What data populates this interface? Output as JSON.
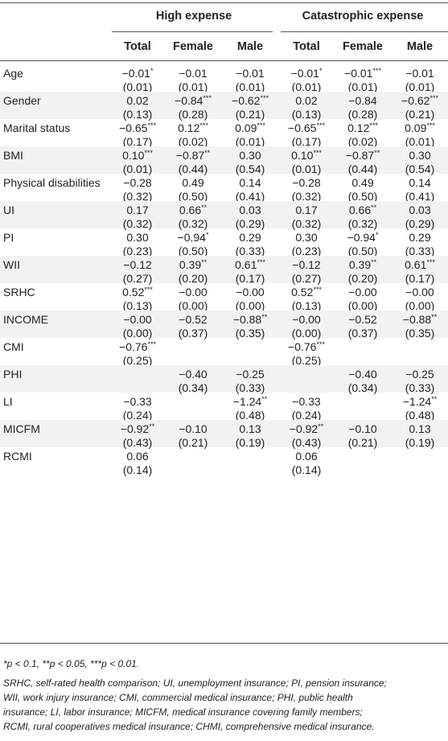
{
  "header": {
    "groups": [
      "High expense",
      "Catastrophic expense"
    ],
    "columns": [
      "Total",
      "Female",
      "Male",
      "Total",
      "Female",
      "Male"
    ]
  },
  "rows": [
    {
      "label": "Age",
      "cells": [
        [
          "−0.01",
          "*",
          "(0.01)"
        ],
        [
          "−0.01",
          "",
          "(0.01)"
        ],
        [
          "−0.01",
          "",
          "(0.01)"
        ],
        [
          "−0.01",
          "*",
          "(0.01)"
        ],
        [
          "−0.01",
          "***",
          "(0.01)"
        ],
        [
          "−0.01",
          "",
          "(0.01)"
        ]
      ]
    },
    {
      "label": "Gender",
      "cells": [
        [
          "0.02",
          "",
          "(0.13)"
        ],
        [
          "−0.84",
          "***",
          "(0.28)"
        ],
        [
          "−0.62",
          "***",
          "(0.21)"
        ],
        [
          "0.02",
          "",
          "(0.13)"
        ],
        [
          "−0.84",
          "",
          "(0.28)"
        ],
        [
          "−0.62",
          "***",
          "(0.21)"
        ]
      ]
    },
    {
      "label": "Marital status",
      "cells": [
        [
          "−0.65",
          "***",
          "(0.17)"
        ],
        [
          "0.12",
          "***",
          "(0.02)"
        ],
        [
          "0.09",
          "***",
          "(0.01)"
        ],
        [
          "−0.65",
          "***",
          "(0.17)"
        ],
        [
          "0.12",
          "***",
          "(0.02)"
        ],
        [
          "0.09",
          "***",
          "(0.01)"
        ]
      ]
    },
    {
      "label": "BMI",
      "cells": [
        [
          "0.10",
          "***",
          "(0.01)"
        ],
        [
          "−0.87",
          "**",
          "(0.44)"
        ],
        [
          "0.30",
          "",
          "(0.54)"
        ],
        [
          "0.10",
          "***",
          "(0.01)"
        ],
        [
          "−0.87",
          "**",
          "(0.44)"
        ],
        [
          "0.30",
          "",
          "(0.54)"
        ]
      ]
    },
    {
      "label": "Physical disabilities",
      "cells": [
        [
          "−0.28",
          "",
          "(0.32)"
        ],
        [
          "0.49",
          "",
          "(0.50)"
        ],
        [
          "0.14",
          "",
          "(0.41)"
        ],
        [
          "−0.28",
          "",
          "(0.32)"
        ],
        [
          "0.49",
          "",
          "(0.50)"
        ],
        [
          "0.14",
          "",
          "(0.41)"
        ]
      ]
    },
    {
      "label": "UI",
      "cells": [
        [
          "0.17",
          "",
          "(0.32)"
        ],
        [
          "0.66",
          "**",
          "(0.32)"
        ],
        [
          "0.03",
          "",
          "(0.29)"
        ],
        [
          "0.17",
          "",
          "(0.32)"
        ],
        [
          "0.66",
          "**",
          "(0.32)"
        ],
        [
          "0.03",
          "",
          "(0.29)"
        ]
      ]
    },
    {
      "label": "PI",
      "cells": [
        [
          "0.30",
          "",
          "(0.23)"
        ],
        [
          "−0.94",
          "*",
          "(0.50)"
        ],
        [
          "0.29",
          "",
          "(0.33)"
        ],
        [
          "0.30",
          "",
          "(0.23)"
        ],
        [
          "−0.94",
          "*",
          "(0.50)"
        ],
        [
          "0.29",
          "",
          "(0.33)"
        ]
      ]
    },
    {
      "label": "WII",
      "cells": [
        [
          "−0.12",
          "",
          "(0.27)"
        ],
        [
          "0.39",
          "**",
          "(0.20)"
        ],
        [
          "0.61",
          "***",
          "(0.17)"
        ],
        [
          "−0.12",
          "",
          "(0.27)"
        ],
        [
          "0.39",
          "**",
          "(0.20)"
        ],
        [
          "0.61",
          "***",
          "(0.17)"
        ]
      ]
    },
    {
      "label": "SRHC",
      "cells": [
        [
          "0.52",
          "***",
          "(0.13)"
        ],
        [
          "−0.00",
          "",
          "(0.00)"
        ],
        [
          "−0.00",
          "",
          "(0.00)"
        ],
        [
          "0.52",
          "***",
          "(0.13)"
        ],
        [
          "−0.00",
          "",
          "(0.00)"
        ],
        [
          "−0.00",
          "",
          "(0.00)"
        ]
      ]
    },
    {
      "label": "INCOME",
      "cells": [
        [
          "−0.00",
          "",
          "(0.00)"
        ],
        [
          "−0.52",
          "",
          "(0.37)"
        ],
        [
          "−0.88",
          "**",
          "(0.35)"
        ],
        [
          "−0.00",
          "",
          "(0.00)"
        ],
        [
          "−0.52",
          "",
          "(0.37)"
        ],
        [
          "−0.88",
          "**",
          "(0.35)"
        ]
      ]
    },
    {
      "label": "CMI",
      "cells": [
        [
          "−0.76",
          "***",
          "(0.25)"
        ],
        null,
        null,
        [
          "−0.76",
          "***",
          "(0.25)"
        ],
        null,
        null
      ]
    },
    {
      "label": "PHI",
      "cells": [
        null,
        [
          "−0.40",
          "",
          "(0.34)"
        ],
        [
          "−0.25",
          "",
          "(0.33)"
        ],
        null,
        [
          "−0.40",
          "",
          "(0.34)"
        ],
        [
          "−0.25",
          "",
          "(0.33)"
        ]
      ]
    },
    {
      "label": "LI",
      "cells": [
        [
          "−0.33",
          "",
          "(0.24)"
        ],
        null,
        [
          "−1.24",
          "**",
          "(0.48)"
        ],
        [
          "−0.33",
          "",
          "(0.24)"
        ],
        null,
        [
          "−1.24",
          "**",
          "(0.48)"
        ]
      ]
    },
    {
      "label": "MICFM",
      "cells": [
        [
          "−0.92",
          "**",
          "(0.43)"
        ],
        [
          "−0.10",
          "",
          "(0.21)"
        ],
        [
          "0.13",
          "",
          "(0.19)"
        ],
        [
          "−0.92",
          "**",
          "(0.43)"
        ],
        [
          "−0.10",
          "",
          "(0.21)"
        ],
        [
          "0.13",
          "",
          "(0.19)"
        ]
      ]
    },
    {
      "label": "RCMI",
      "cells": [
        [
          "0.06",
          "",
          "(0.14)"
        ],
        null,
        null,
        [
          "0.06",
          "",
          "(0.14)"
        ],
        null,
        null
      ]
    }
  ],
  "footnotes": [
    "*p < 0.1, **p < 0.05, ***p < 0.01.",
    "SRHC, self-rated health comparison; UI, unemployment insurance; PI, pension insurance;",
    "WII, work injury insurance; CMI, commercial medical insurance; PHI, public health",
    "insurance; LI, labor insurance; MICFM, medical insurance covering family members;",
    "RCMI, rural cooperatives medical insurance; CHMI, comprehensive medical insurance."
  ]
}
